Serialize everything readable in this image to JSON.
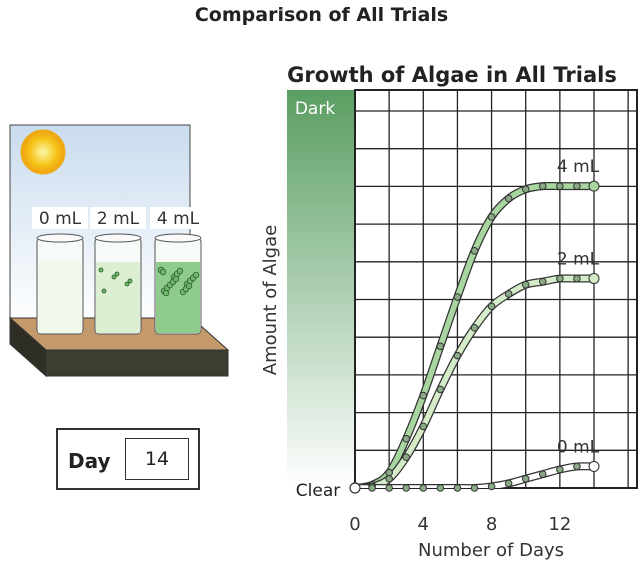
{
  "page_title": "Comparison of All Trials",
  "day_panel": {
    "label": "Day",
    "value": "14"
  },
  "beakers": [
    {
      "label": "0 mL",
      "color": "#f3f8ec"
    },
    {
      "label": "2 mL",
      "color": "#dcefd2"
    },
    {
      "label": "4 mL",
      "color": "#8fcc8c"
    }
  ],
  "colors": {
    "sky": "#c9dcee",
    "sun": "#f5c518",
    "shelf_top": "#c49a6c",
    "shelf_front": "#3e3e30",
    "gradient_dark": "#5a9e62",
    "gradient_clear": "#ffffff",
    "curve_4ml": "#a8d5a0",
    "curve_2ml": "#d5ecc8",
    "curve_0ml": "#ffffff"
  },
  "chart_data": {
    "type": "line",
    "title": "Growth of Algae in All Trials",
    "xlabel": "Number of Days",
    "ylabel": "Amount of Algae",
    "xlim": [
      0,
      14
    ],
    "ylim": [
      0,
      10
    ],
    "x_ticks": [
      0,
      4,
      8,
      12
    ],
    "y_ticks_labels": [
      {
        "label": "Dark",
        "at": "top"
      },
      {
        "label": "Clear",
        "at": "bottom"
      }
    ],
    "grid": true,
    "series": [
      {
        "name": "4 mL",
        "x": [
          0,
          1,
          2,
          3,
          4,
          5,
          6,
          7,
          8,
          9,
          10,
          11,
          12,
          13,
          14
        ],
        "values": [
          0,
          0.1,
          0.5,
          1.6,
          3.0,
          4.6,
          6.2,
          7.7,
          8.8,
          9.4,
          9.7,
          9.8,
          9.8,
          9.8,
          9.8
        ]
      },
      {
        "name": "2 mL",
        "x": [
          0,
          1,
          2,
          3,
          4,
          5,
          6,
          7,
          8,
          9,
          10,
          11,
          12,
          13,
          14
        ],
        "values": [
          0,
          0.05,
          0.3,
          1.0,
          2.0,
          3.2,
          4.3,
          5.2,
          5.9,
          6.3,
          6.6,
          6.7,
          6.8,
          6.8,
          6.8
        ]
      },
      {
        "name": "0 mL",
        "x": [
          0,
          1,
          2,
          3,
          4,
          5,
          6,
          7,
          8,
          9,
          10,
          11,
          12,
          13,
          14
        ],
        "values": [
          0,
          0,
          0,
          0,
          0,
          0,
          0,
          0,
          0.05,
          0.15,
          0.3,
          0.45,
          0.6,
          0.7,
          0.7
        ]
      }
    ]
  }
}
